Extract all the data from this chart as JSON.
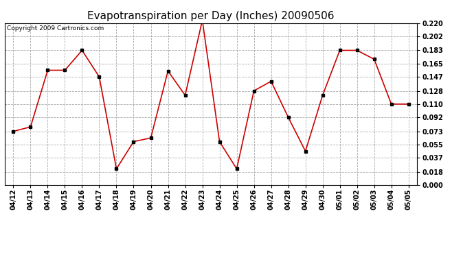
{
  "title": "Evapotranspiration per Day (Inches) 20090506",
  "copyright_text": "Copyright 2009 Cartronics.com",
  "x_labels": [
    "04/12",
    "04/13",
    "04/14",
    "04/15",
    "04/16",
    "04/17",
    "04/18",
    "04/19",
    "04/20",
    "04/21",
    "04/22",
    "04/23",
    "04/24",
    "04/25",
    "04/26",
    "04/27",
    "04/28",
    "04/29",
    "04/30",
    "05/01",
    "05/02",
    "05/03",
    "05/04",
    "05/05"
  ],
  "y_values": [
    0.073,
    0.079,
    0.156,
    0.156,
    0.183,
    0.147,
    0.022,
    0.059,
    0.064,
    0.155,
    0.122,
    0.224,
    0.059,
    0.022,
    0.128,
    0.141,
    0.092,
    0.046,
    0.122,
    0.183,
    0.183,
    0.171,
    0.11,
    0.11
  ],
  "line_color": "#cc0000",
  "marker": "s",
  "marker_size": 2.5,
  "marker_color": "#000000",
  "background_color": "#ffffff",
  "plot_bg_color": "#ffffff",
  "grid_color": "#aaaaaa",
  "grid_style": "--",
  "y_min": 0.0,
  "y_max": 0.22,
  "y_ticks": [
    0.0,
    0.018,
    0.037,
    0.055,
    0.073,
    0.092,
    0.11,
    0.128,
    0.147,
    0.165,
    0.183,
    0.202,
    0.22
  ],
  "title_fontsize": 11,
  "tick_fontsize": 7,
  "copyright_fontsize": 6.5
}
